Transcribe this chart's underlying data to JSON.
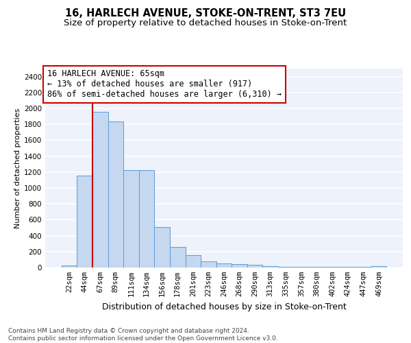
{
  "title": "16, HARLECH AVENUE, STOKE-ON-TRENT, ST3 7EU",
  "subtitle": "Size of property relative to detached houses in Stoke-on-Trent",
  "xlabel": "Distribution of detached houses by size in Stoke-on-Trent",
  "ylabel": "Number of detached properties",
  "categories": [
    "22sqm",
    "44sqm",
    "67sqm",
    "89sqm",
    "111sqm",
    "134sqm",
    "156sqm",
    "178sqm",
    "201sqm",
    "223sqm",
    "246sqm",
    "268sqm",
    "290sqm",
    "313sqm",
    "335sqm",
    "357sqm",
    "380sqm",
    "402sqm",
    "424sqm",
    "447sqm",
    "469sqm"
  ],
  "values": [
    25,
    1155,
    1955,
    1840,
    1220,
    1220,
    510,
    260,
    155,
    80,
    55,
    40,
    35,
    15,
    10,
    10,
    10,
    10,
    5,
    5,
    20
  ],
  "bar_color": "#c5d8f0",
  "bar_edge_color": "#5b9bd5",
  "vline_color": "#cc0000",
  "annotation_text": "16 HARLECH AVENUE: 65sqm\n← 13% of detached houses are smaller (917)\n86% of semi-detached houses are larger (6,310) →",
  "annotation_box_color": "#ffffff",
  "annotation_box_edge": "#cc0000",
  "footer": "Contains HM Land Registry data © Crown copyright and database right 2024.\nContains public sector information licensed under the Open Government Licence v3.0.",
  "ylim": [
    0,
    2500
  ],
  "yticks": [
    0,
    200,
    400,
    600,
    800,
    1000,
    1200,
    1400,
    1600,
    1800,
    2000,
    2200,
    2400
  ],
  "bg_color": "#edf2fb",
  "grid_color": "#ffffff",
  "title_fontsize": 10.5,
  "subtitle_fontsize": 9.5,
  "annotation_fontsize": 8.5,
  "ylabel_fontsize": 8,
  "xlabel_fontsize": 9,
  "footer_fontsize": 6.5,
  "tick_fontsize": 7.5
}
